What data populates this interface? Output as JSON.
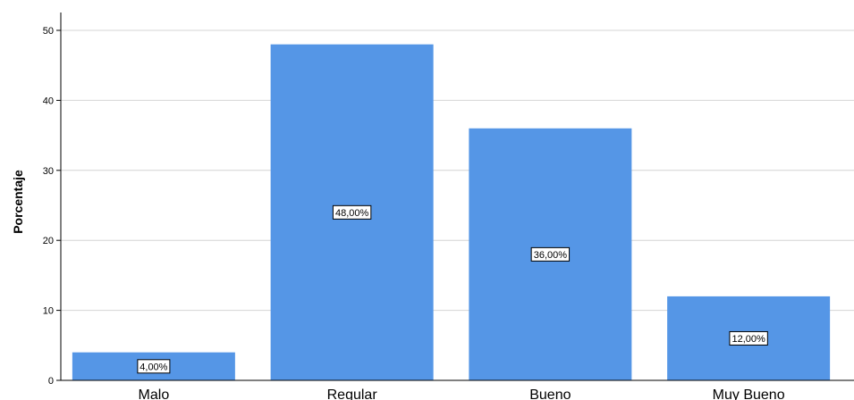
{
  "chart_data": {
    "type": "bar",
    "categories": [
      "Malo",
      "Regular",
      "Bueno",
      "Muy Bueno"
    ],
    "values": [
      4,
      48,
      36,
      12
    ],
    "data_labels": [
      "4,00%",
      "48,00%",
      "36,00%",
      "12,00%"
    ],
    "xlabel": "",
    "ylabel": "Porcentaje",
    "ylim": [
      0,
      50
    ],
    "yticks": [
      0,
      10,
      20,
      30,
      40,
      50
    ],
    "grid": true,
    "colors": {
      "bar": "#5596e6",
      "grid": "#d4d4d4",
      "axis": "#000000"
    }
  }
}
